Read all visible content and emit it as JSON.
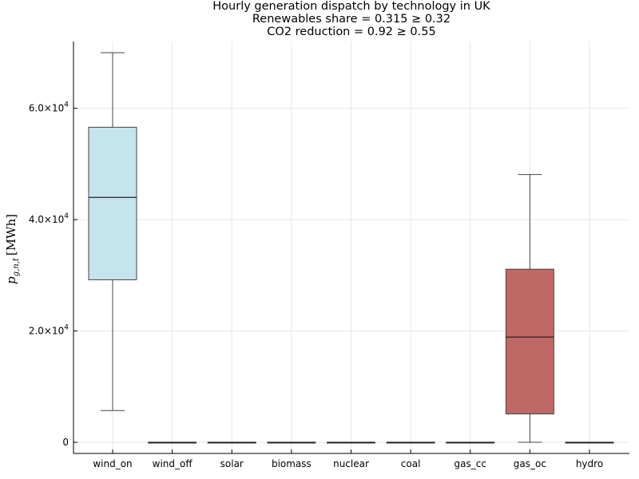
{
  "chart_data": {
    "type": "box",
    "title_lines": [
      "Hourly generation dispatch by technology in UK",
      "Renewables share = 0.315 ≥ 0.32",
      "CO2 reduction = 0.92 ≥ 0.55"
    ],
    "xlabel": "",
    "ylabel": {
      "symbol": "p",
      "subscript": "g,n,t",
      "unit": "[MWh]"
    },
    "ylim": [
      -2000,
      72000
    ],
    "yticks": [
      {
        "value": 0,
        "mantissa": "0",
        "exponent": ""
      },
      {
        "value": 20000,
        "mantissa": "2.0×10",
        "exponent": "4"
      },
      {
        "value": 40000,
        "mantissa": "4.0×10",
        "exponent": "4"
      },
      {
        "value": 60000,
        "mantissa": "6.0×10",
        "exponent": "4"
      }
    ],
    "grid": true,
    "categories": [
      "wind_on",
      "wind_off",
      "solar",
      "biomass",
      "nuclear",
      "coal",
      "gas_cc",
      "gas_oc",
      "hydro"
    ],
    "boxes": [
      {
        "category": "wind_on",
        "min": 5700,
        "q1": 29200,
        "median": 44000,
        "q3": 56600,
        "max": 70000,
        "color": "#c6e4ee"
      },
      {
        "category": "wind_off",
        "min": 0,
        "q1": 0,
        "median": 0,
        "q3": 0,
        "max": 0,
        "color": "#c6e4ee"
      },
      {
        "category": "solar",
        "min": 0,
        "q1": 0,
        "median": 0,
        "q3": 0,
        "max": 0,
        "color": "#c6e4ee"
      },
      {
        "category": "biomass",
        "min": 0,
        "q1": 0,
        "median": 0,
        "q3": 0,
        "max": 0,
        "color": "#c6e4ee"
      },
      {
        "category": "nuclear",
        "min": 0,
        "q1": 0,
        "median": 0,
        "q3": 0,
        "max": 0,
        "color": "#c6e4ee"
      },
      {
        "category": "coal",
        "min": 0,
        "q1": 0,
        "median": 0,
        "q3": 0,
        "max": 0,
        "color": "#c6e4ee"
      },
      {
        "category": "gas_cc",
        "min": 0,
        "q1": 0,
        "median": 0,
        "q3": 0,
        "max": 0,
        "color": "#c6e4ee"
      },
      {
        "category": "gas_oc",
        "min": 0,
        "q1": 5100,
        "median": 18900,
        "q3": 31100,
        "max": 48100,
        "color": "#c06865"
      },
      {
        "category": "hydro",
        "min": 0,
        "q1": 0,
        "median": 0,
        "q3": 0,
        "max": 0,
        "color": "#c6e4ee"
      }
    ]
  }
}
